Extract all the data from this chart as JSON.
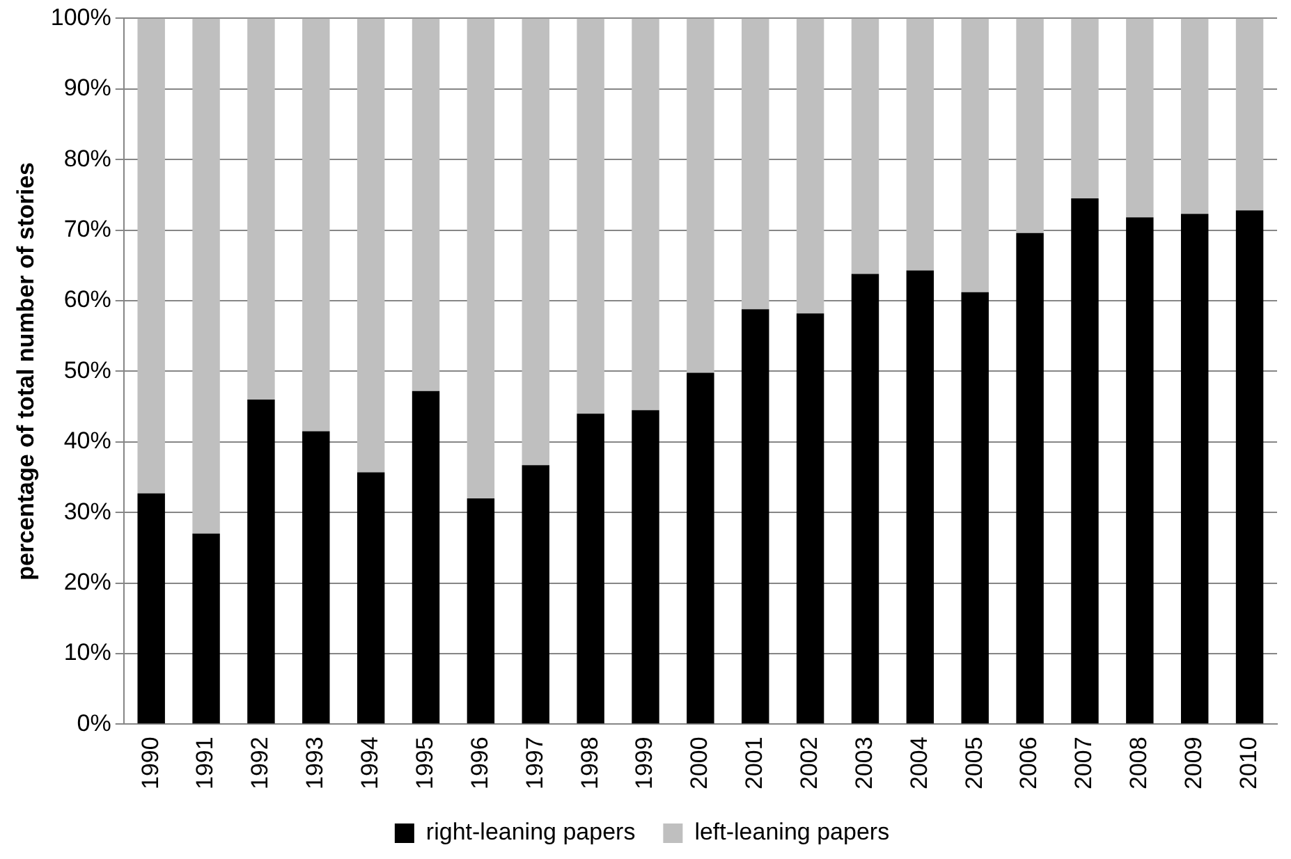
{
  "chart_data": {
    "type": "bar",
    "stacked": true,
    "ylabel": "percentage of total number of stories",
    "categories": [
      "1990",
      "1991",
      "1992",
      "1993",
      "1994",
      "1995",
      "1996",
      "1997",
      "1998",
      "1999",
      "2000",
      "2001",
      "2002",
      "2003",
      "2004",
      "2005",
      "2006",
      "2007",
      "2008",
      "2009",
      "2010"
    ],
    "series": [
      {
        "name": "right-leaning papers",
        "color": "#000000",
        "values": [
          32.7,
          27,
          46,
          41.5,
          35.7,
          47.2,
          32,
          36.7,
          44,
          44.5,
          49.8,
          58.8,
          58.2,
          63.8,
          64.3,
          61.2,
          69.6,
          74.5,
          71.8,
          72.3,
          72.8
        ]
      },
      {
        "name": "left-leaning papers",
        "color": "#bfbfbf",
        "values": [
          67.3,
          73,
          54,
          58.5,
          64.3,
          52.8,
          68,
          63.3,
          56,
          55.5,
          50.2,
          41.2,
          41.8,
          36.2,
          35.7,
          38.8,
          30.4,
          25.5,
          28.2,
          27.7,
          27.2
        ]
      }
    ],
    "ylim": [
      0,
      100
    ],
    "yticks": [
      {
        "value": 0,
        "label": "0%"
      },
      {
        "value": 10,
        "label": "10%"
      },
      {
        "value": 20,
        "label": "20%"
      },
      {
        "value": 30,
        "label": "30%"
      },
      {
        "value": 40,
        "label": "40%"
      },
      {
        "value": 50,
        "label": "50%"
      },
      {
        "value": 60,
        "label": "60%"
      },
      {
        "value": 70,
        "label": "70%"
      },
      {
        "value": 80,
        "label": "80%"
      },
      {
        "value": 90,
        "label": "90%"
      },
      {
        "value": 100,
        "label": "100%"
      }
    ],
    "grid": "y",
    "legend": "bottom"
  }
}
